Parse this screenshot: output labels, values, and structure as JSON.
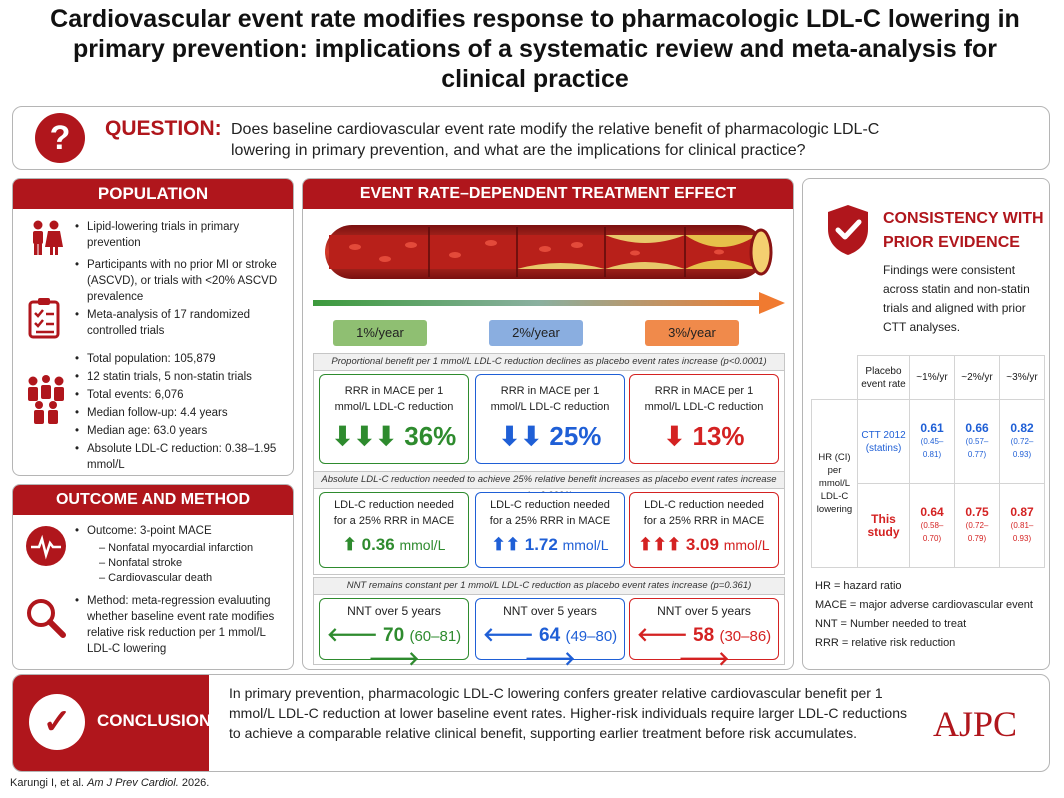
{
  "title": "Cardiovascular event rate modifies response to pharmacologic LDL-C lowering in primary prevention: implications of a systematic review and meta-analysis for clinical practice",
  "question": {
    "label": "QUESTION:",
    "text": "Does baseline cardiovascular event rate modify the relative benefit of pharmacologic LDL-C lowering in primary prevention, and what are the implications for clinical practice?"
  },
  "population": {
    "heading": "POPULATION",
    "group1": [
      "Lipid-lowering trials in primary prevention",
      "Participants with no prior MI or stroke (ASCVD), or trials with <20% ASCVD prevalence"
    ],
    "group2": [
      "Meta-analysis of 17 randomized controlled trials"
    ],
    "group3": [
      "Total population: 105,879",
      "12 statin trials, 5 non-statin trials",
      "Total events: 6,076",
      "Median follow-up: 4.4 years",
      "Median age: 63.0 years",
      "Absolute LDL-C reduction: 0.38–1.95 mmol/L"
    ]
  },
  "outcome": {
    "heading": "OUTCOME AND METHOD",
    "outcome_label": "Outcome: 3-point MACE",
    "sub_items": [
      "– Nonfatal myocardial infarction",
      "– Nonfatal stroke",
      "– Cardiovascular death"
    ],
    "method_label": "Method: meta-regression evaluuting whether baseline event rate modifies relative risk reduction per 1 mmol/L LDL-C lowering"
  },
  "effect": {
    "heading": "EVENT RATE–DEPENDENT TREATMENT EFFECT",
    "rates": [
      "1%/year",
      "2%/year",
      "3%/year"
    ],
    "rate_colors": [
      "#8fbf72",
      "#8aaee0",
      "#f08a4b"
    ],
    "section1": {
      "caption": "Proportional benefit per 1 mmol/L LDL-C reduction declines as placebo event rates increase (p<0.0001)",
      "cards": [
        {
          "title": "RRR in MACE per 1 mmol/L LDL-C reduction",
          "arrows": "⬇⬇⬇",
          "value": "36%"
        },
        {
          "title": "RRR in MACE per 1 mmol/L LDL-C reduction",
          "arrows": "⬇⬇",
          "value": "25%"
        },
        {
          "title": "RRR in MACE per 1 mmol/L LDL-C reduction",
          "arrows": "⬇",
          "value": "13%"
        }
      ]
    },
    "section2": {
      "caption": "Absolute LDL-C reduction needed to achieve 25% relative benefit increases as placebo event rates increase (p=0.0001)",
      "cards": [
        {
          "title": "LDL-C reduction needed for a 25% RRR in MACE",
          "arrows": "⬆",
          "value": "0.36",
          "unit": "mmol/L"
        },
        {
          "title": "LDL-C reduction needed for a 25% RRR in MACE",
          "arrows": "⬆⬆",
          "value": "1.72",
          "unit": "mmol/L"
        },
        {
          "title": "LDL-C reduction needed for a 25% RRR in MACE",
          "arrows": "⬆⬆⬆",
          "value": "3.09",
          "unit": "mmol/L"
        }
      ]
    },
    "section3": {
      "caption": "NNT remains constant per 1 mmol/L LDL-C reduction as placebo event rates increase (p=0.361)",
      "cards": [
        {
          "title": "NNT over 5 years",
          "value": "70",
          "ci": "(60–81)"
        },
        {
          "title": "NNT over 5 years",
          "value": "64",
          "ci": "(49–80)"
        },
        {
          "title": "NNT over 5 years",
          "value": "58",
          "ci": "(30–86)"
        }
      ]
    },
    "colors": {
      "green": "#2e8b2e",
      "blue": "#1f5fd6",
      "red": "#d42222"
    }
  },
  "consistency": {
    "heading_line1": "CONSISTENCY WITH",
    "heading_line2": "PRIOR EVIDENCE",
    "text": "Findings were consistent across statin and non-statin trials and aligned with prior CTT analyses.",
    "table": {
      "col_header": "Placebo event rate",
      "cols": [
        "~1%/yr",
        "~2%/yr",
        "~3%/yr"
      ],
      "row_label": "HR (CI) per mmol/L LDL-C lowering",
      "rows": [
        {
          "name": "CTT 2012 (statins)",
          "hr": [
            "0.61",
            "0.66",
            "0.82"
          ],
          "ci": [
            "(0.45–0.81)",
            "(0.57–0.77)",
            "(0.72–0.93)"
          ]
        },
        {
          "name": "This study",
          "hr": [
            "0.64",
            "0.75",
            "0.87"
          ],
          "ci": [
            "(0.58–0.70)",
            "(0.72–0.79)",
            "(0.81–0.93)"
          ]
        }
      ]
    },
    "abbreviations": [
      "HR = hazard ratio",
      "MACE = major adverse cardiovascular event",
      "NNT = Number needed to treat",
      "RRR = relative risk reduction"
    ]
  },
  "conclusion": {
    "label": "CONCLUSION",
    "text": "In primary prevention, pharmacologic LDL-C lowering confers greater relative cardiovascular benefit per 1 mmol/L LDL-C reduction at lower baseline event rates. Higher-risk individuals require larger LDL-C reductions to achieve a comparable relative clinical benefit, supporting earlier treatment before risk accumulates."
  },
  "journal": "AJPC",
  "citation": {
    "authors": "Karungi I, et al.",
    "journal": "Am J Prev Cardiol.",
    "year": "2026."
  }
}
